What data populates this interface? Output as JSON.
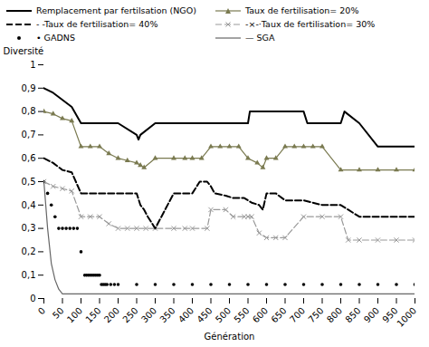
{
  "chart_data": {
    "type": "line",
    "xlabel": "Génération",
    "ylabel": "Diversité",
    "xlim": [
      0,
      1000
    ],
    "ylim": [
      0,
      1.0
    ],
    "xticks": [
      0,
      50,
      100,
      150,
      200,
      250,
      300,
      350,
      400,
      450,
      500,
      550,
      600,
      650,
      700,
      750,
      800,
      850,
      900,
      950,
      1000
    ],
    "yticks": [
      0,
      {
        "value": 0.1,
        "label": "0,1"
      },
      {
        "value": 0.2,
        "label": "0,2"
      },
      {
        "value": 0.3,
        "label": "0,3"
      },
      {
        "value": 0.4,
        "label": "0,4"
      },
      {
        "value": 0.5,
        "label": "0,5"
      },
      {
        "value": 0.6,
        "label": "0,6"
      },
      {
        "value": 0.7,
        "label": "0,7"
      },
      {
        "value": 0.8,
        "label": "0,8"
      },
      {
        "value": 0.9,
        "label": "0,9"
      },
      1
    ],
    "legend": "upper right",
    "series": [
      {
        "name": "Remplacement par fertilsation (NGO)",
        "color": "black",
        "line_style": "solid",
        "x": [
          0,
          25,
          50,
          75,
          100,
          125,
          150,
          200,
          250,
          255,
          260,
          300,
          350,
          400,
          450,
          500,
          550,
          555,
          560,
          600,
          650,
          700,
          710,
          750,
          800,
          810,
          850,
          900,
          950,
          1000
        ],
        "values": [
          0.9,
          0.88,
          0.85,
          0.82,
          0.75,
          0.75,
          0.75,
          0.75,
          0.7,
          0.68,
          0.7,
          0.75,
          0.75,
          0.75,
          0.75,
          0.75,
          0.75,
          0.8,
          0.8,
          0.8,
          0.8,
          0.8,
          0.75,
          0.75,
          0.75,
          0.8,
          0.75,
          0.65,
          0.65,
          0.65
        ]
      },
      {
        "name": "Taux de fertilisation= 20%",
        "color": "#7a7a50",
        "line_style": "solid",
        "marker": "triangle",
        "x": [
          0,
          25,
          50,
          75,
          100,
          125,
          150,
          175,
          200,
          225,
          250,
          260,
          270,
          300,
          350,
          380,
          400,
          425,
          450,
          475,
          500,
          525,
          550,
          575,
          590,
          600,
          625,
          650,
          675,
          700,
          725,
          750,
          800,
          850,
          900,
          950,
          1000
        ],
        "values": [
          0.8,
          0.79,
          0.77,
          0.76,
          0.65,
          0.65,
          0.65,
          0.62,
          0.6,
          0.59,
          0.58,
          0.57,
          0.56,
          0.6,
          0.6,
          0.6,
          0.6,
          0.6,
          0.65,
          0.65,
          0.65,
          0.65,
          0.6,
          0.58,
          0.56,
          0.6,
          0.6,
          0.65,
          0.65,
          0.65,
          0.65,
          0.65,
          0.55,
          0.55,
          0.55,
          0.55,
          0.55
        ]
      },
      {
        "name": "- -Taux de fertilisation= 40%",
        "color": "black",
        "line_style": "dashed",
        "x": [
          0,
          25,
          50,
          75,
          100,
          125,
          150,
          200,
          250,
          260,
          270,
          280,
          300,
          350,
          400,
          420,
          440,
          450,
          460,
          490,
          510,
          540,
          550,
          560,
          580,
          590,
          600,
          625,
          650,
          700,
          750,
          800,
          820,
          840,
          850,
          900,
          950,
          1000
        ],
        "values": [
          0.6,
          0.58,
          0.55,
          0.54,
          0.45,
          0.45,
          0.45,
          0.45,
          0.45,
          0.4,
          0.38,
          0.35,
          0.3,
          0.45,
          0.45,
          0.5,
          0.5,
          0.48,
          0.45,
          0.44,
          0.43,
          0.43,
          0.42,
          0.41,
          0.4,
          0.38,
          0.45,
          0.45,
          0.42,
          0.42,
          0.4,
          0.4,
          0.38,
          0.36,
          0.35,
          0.35,
          0.35,
          0.35
        ]
      },
      {
        "name": "-×-·Taux de fertilisation= 30%",
        "color": "#999999",
        "line_style": "dashed",
        "marker": "x",
        "x": [
          0,
          25,
          50,
          75,
          100,
          125,
          150,
          175,
          200,
          225,
          250,
          275,
          300,
          350,
          380,
          400,
          440,
          450,
          490,
          510,
          540,
          550,
          560,
          580,
          600,
          625,
          650,
          700,
          750,
          800,
          820,
          850,
          900,
          950,
          1000
        ],
        "values": [
          0.5,
          0.48,
          0.47,
          0.46,
          0.35,
          0.35,
          0.35,
          0.32,
          0.3,
          0.3,
          0.3,
          0.3,
          0.3,
          0.3,
          0.3,
          0.3,
          0.3,
          0.38,
          0.38,
          0.35,
          0.35,
          0.35,
          0.35,
          0.28,
          0.26,
          0.26,
          0.26,
          0.35,
          0.35,
          0.35,
          0.25,
          0.25,
          0.25,
          0.25,
          0.25
        ]
      },
      {
        "name": "• GADNS",
        "color": "black",
        "line_style": "none",
        "marker": "dot",
        "x": [
          0,
          10,
          20,
          30,
          40,
          50,
          60,
          70,
          80,
          90,
          100,
          110,
          115,
          120,
          125,
          130,
          135,
          140,
          145,
          150,
          155,
          160,
          165,
          170,
          180,
          190,
          200,
          250,
          300,
          350,
          400,
          450,
          500,
          550,
          600,
          650,
          700,
          750,
          800,
          850,
          900,
          950,
          1000
        ],
        "values": [
          0.5,
          0.45,
          0.4,
          0.35,
          0.3,
          0.3,
          0.3,
          0.3,
          0.3,
          0.3,
          0.2,
          0.1,
          0.1,
          0.1,
          0.1,
          0.1,
          0.1,
          0.1,
          0.1,
          0.1,
          0.06,
          0.06,
          0.06,
          0.06,
          0.06,
          0.06,
          0.06,
          0.06,
          0.06,
          0.06,
          0.06,
          0.06,
          0.06,
          0.06,
          0.06,
          0.06,
          0.06,
          0.06,
          0.06,
          0.06,
          0.06,
          0.06,
          0.06
        ]
      },
      {
        "name": "— SGA",
        "color": "#666666",
        "line_style": "solid",
        "x": [
          0,
          10,
          20,
          30,
          40,
          50,
          60,
          70,
          100,
          200,
          300,
          1000
        ],
        "values": [
          0.5,
          0.3,
          0.15,
          0.08,
          0.04,
          0.02,
          0.02,
          0.02,
          0.02,
          0.02,
          0.02,
          0.02
        ]
      }
    ]
  }
}
